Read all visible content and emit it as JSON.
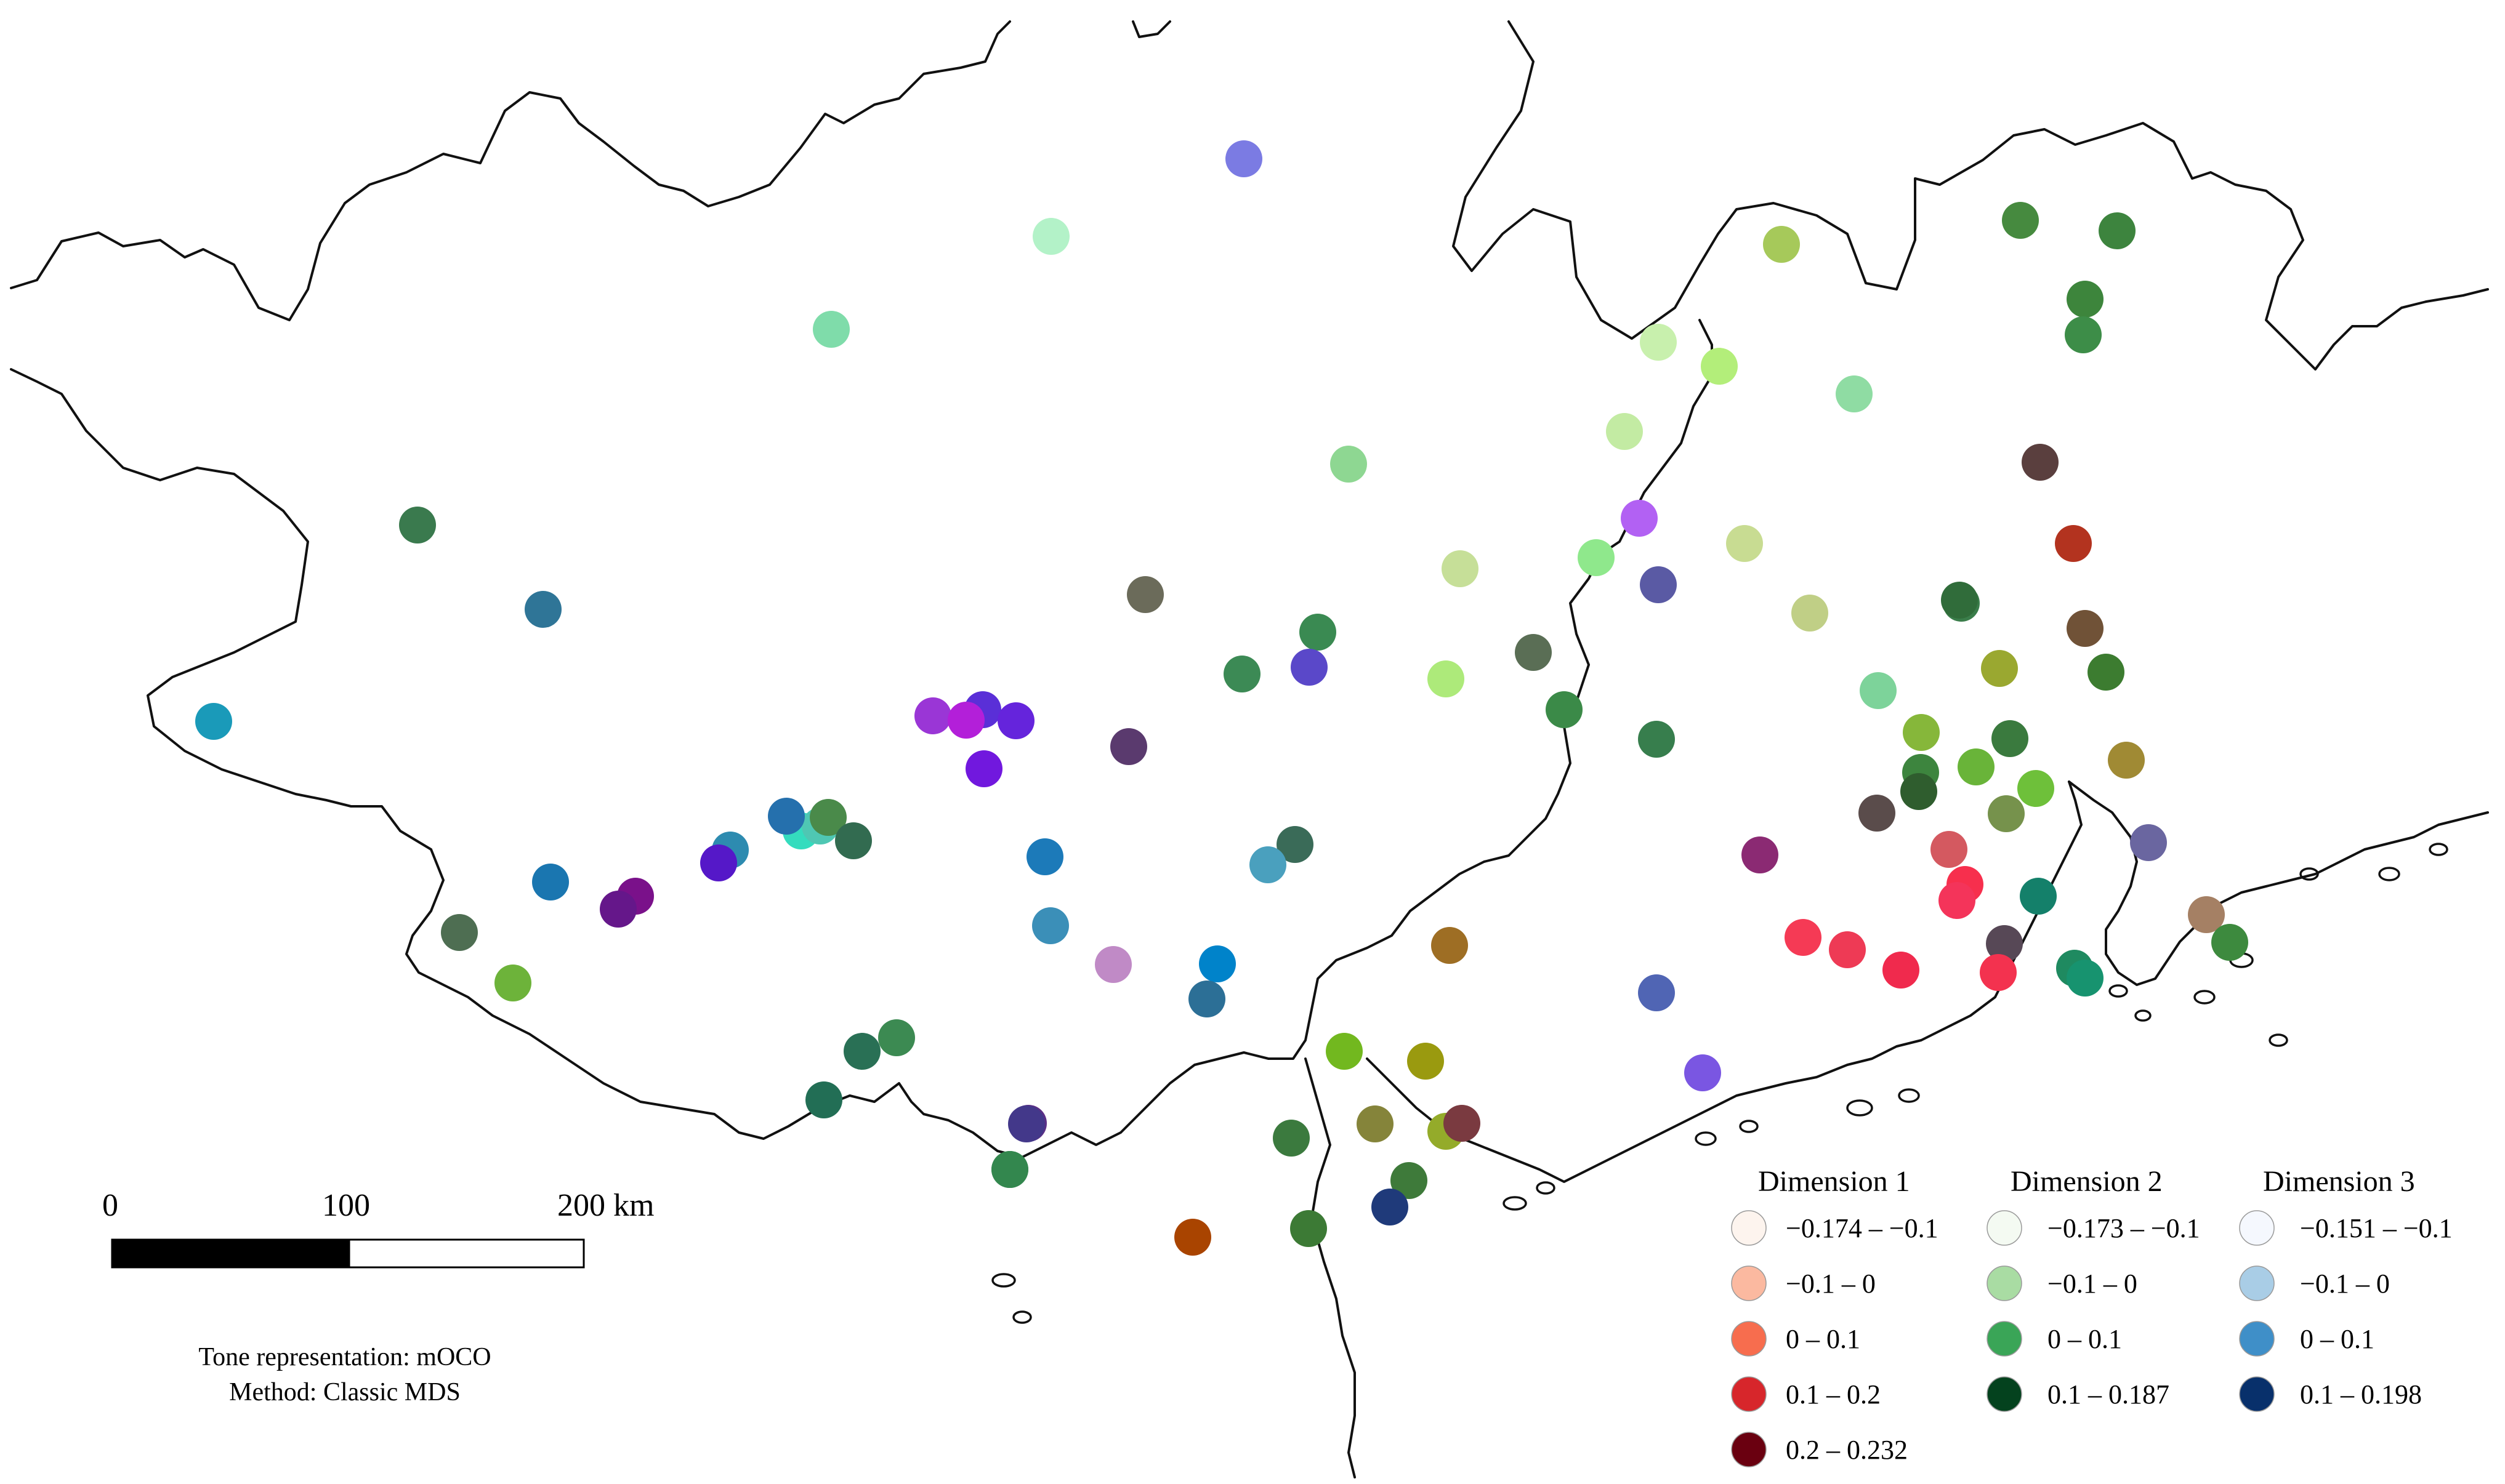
{
  "scale_bar": {
    "ticks": [
      "0",
      "100",
      "200 km"
    ]
  },
  "caption": {
    "line1": "Tone representation: mOCO",
    "line2": "Method: Classic MDS"
  },
  "legend": {
    "dim1": {
      "title": "Dimension 1",
      "items": [
        {
          "label": "−0.174 – −0.1",
          "color": "#fdf4ee"
        },
        {
          "label": "−0.1 – 0",
          "color": "#fbb9a0"
        },
        {
          "label": "0 – 0.1",
          "color": "#f76d4e"
        },
        {
          "label": "0.1 – 0.2",
          "color": "#d7262b"
        },
        {
          "label": "0.2 – 0.232",
          "color": "#6a0010"
        }
      ]
    },
    "dim2": {
      "title": "Dimension 2",
      "items": [
        {
          "label": "−0.173 – −0.1",
          "color": "#f4faf2"
        },
        {
          "label": "−0.1 – 0",
          "color": "#a9dca3"
        },
        {
          "label": "0 – 0.1",
          "color": "#3aa557"
        },
        {
          "label": "0.1 – 0.187",
          "color": "#04421e"
        }
      ]
    },
    "dim3": {
      "title": "Dimension 3",
      "items": [
        {
          "label": "−0.151 – −0.1",
          "color": "#f5f8fe"
        },
        {
          "label": "−0.1 – 0",
          "color": "#a9cde6"
        },
        {
          "label": "0 – 0.1",
          "color": "#3f8fc8"
        },
        {
          "label": "0.1 – 0.198",
          "color": "#08306b"
        }
      ]
    }
  },
  "sites": [
    {
      "color": "#7b7be3"
    },
    {
      "color": "#b3f2c8"
    },
    {
      "color": "#7fdcaa"
    },
    {
      "color": "#3a7a4e"
    },
    {
      "color": "#2f7597"
    },
    {
      "color": "#1a9ab9"
    },
    {
      "color": "#8ed792"
    },
    {
      "color": "#6b6b5a"
    },
    {
      "color": "#3a8a52"
    },
    {
      "color": "#5a48c9"
    },
    {
      "color": "#3c8a55"
    },
    {
      "color": "#9a36d6"
    },
    {
      "color": "#5a2fd7"
    },
    {
      "color": "#b31fd9"
    },
    {
      "color": "#6524dc"
    },
    {
      "color": "#7118de"
    },
    {
      "color": "#5a3a6e"
    },
    {
      "color": "#2d8bb0"
    },
    {
      "color": "#1a76b0"
    },
    {
      "color": "#34dcbe"
    },
    {
      "color": "#4fc7b3"
    },
    {
      "color": "#4a8a4a"
    },
    {
      "color": "#326b50"
    },
    {
      "color": "#2570ad"
    },
    {
      "color": "#7a118a"
    },
    {
      "color": "#65178a"
    },
    {
      "color": "#5518c8"
    },
    {
      "color": "#1c7ab9"
    },
    {
      "color": "#3b8fb8"
    },
    {
      "color": "#c08ac6"
    },
    {
      "color": "#0083ca"
    },
    {
      "color": "#2c6f96"
    },
    {
      "color": "#3a6b58"
    },
    {
      "color": "#4aa0be"
    },
    {
      "color": "#4e6e52"
    },
    {
      "color": "#6db33a"
    },
    {
      "color": "#3c8a52"
    },
    {
      "color": "#226e55"
    },
    {
      "color": "#5b2f86"
    },
    {
      "color": "#2e7e52"
    },
    {
      "color": "#a6c95a"
    },
    {
      "color": "#c8f0ad"
    },
    {
      "color": "#b3ee7a"
    },
    {
      "color": "#8fdca3"
    },
    {
      "color": "#c3eba3"
    },
    {
      "color": "#b261f3"
    },
    {
      "color": "#8fe88c"
    },
    {
      "color": "#c6df98"
    },
    {
      "color": "#5a5aa4"
    },
    {
      "color": "#c8dc92"
    },
    {
      "color": "#c0cf86"
    },
    {
      "color": "#adea7a"
    },
    {
      "color": "#5a6e55"
    },
    {
      "color": "#3b8a48"
    },
    {
      "color": "#377e4d"
    },
    {
      "color": "#468a3f"
    },
    {
      "color": "#3d843e"
    },
    {
      "color": "#7dd39a"
    },
    {
      "color": "#3a7d4a"
    },
    {
      "color": "#3d853c"
    },
    {
      "color": "#3d8d48"
    },
    {
      "color": "#3d853e"
    },
    {
      "color": "#5a3f3e"
    },
    {
      "color": "#b3331f"
    },
    {
      "color": "#306c3a"
    },
    {
      "color": "#705237"
    },
    {
      "color": "#9aa830"
    },
    {
      "color": "#3c7c30"
    },
    {
      "color": "#86b73a"
    },
    {
      "color": "#3a7a3e"
    },
    {
      "color": "#69b439"
    },
    {
      "color": "#5a4c4b"
    },
    {
      "color": "#2f5d2e"
    },
    {
      "color": "#6ec03a"
    },
    {
      "color": "#76924c"
    },
    {
      "color": "#a08a34"
    },
    {
      "color": "#8b2a73"
    },
    {
      "color": "#6a66a0"
    },
    {
      "color": "#d45960"
    },
    {
      "color": "#f72f4d"
    },
    {
      "color": "#f4345a"
    },
    {
      "color": "#14806a"
    },
    {
      "color": "#574856"
    },
    {
      "color": "#f53a55"
    },
    {
      "color": "#ee3a55"
    },
    {
      "color": "#f02a4d"
    },
    {
      "color": "#f3324f"
    },
    {
      "color": "#1f8a60"
    },
    {
      "color": "#17936f"
    },
    {
      "color": "#a58064"
    },
    {
      "color": "#3d8a3e"
    },
    {
      "color": "#5065b4"
    },
    {
      "color": "#9e6e24"
    },
    {
      "color": "#7a56e2"
    },
    {
      "color": "#72b81f"
    },
    {
      "color": "#9a9a0f"
    },
    {
      "color": "#3b7a3e"
    },
    {
      "color": "#85843a"
    },
    {
      "color": "#94ab2a"
    },
    {
      "color": "#7a3a40"
    },
    {
      "color": "#3e7a3a"
    },
    {
      "color": "#1f3a7a"
    },
    {
      "color": "#3c7a35"
    },
    {
      "color": "#a94400"
    },
    {
      "color": "#43388a"
    },
    {
      "color": "#33874e"
    },
    {
      "color": "#297055"
    }
  ]
}
